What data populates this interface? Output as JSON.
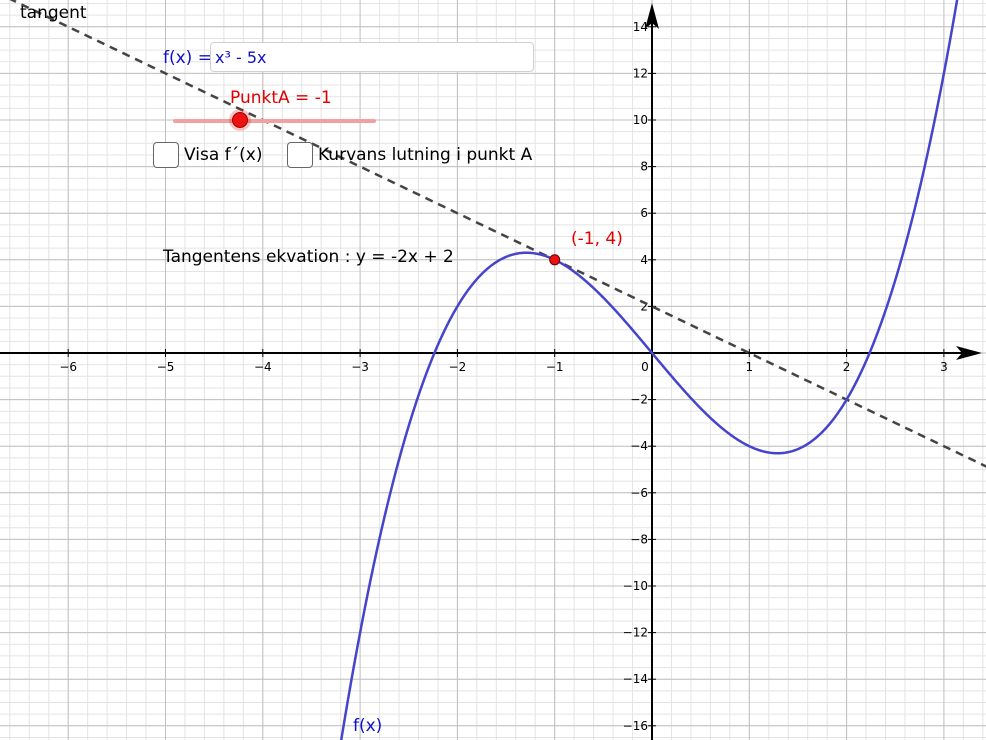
{
  "graph": {
    "x_ticks": [
      "−6",
      "−5",
      "−4",
      "−3",
      "−2",
      "−1",
      "0",
      "1",
      "2",
      "3"
    ],
    "y_ticks": [
      "14",
      "12",
      "10",
      "8",
      "6",
      "4",
      "2",
      "−2",
      "−4",
      "−6",
      "−8",
      "−10",
      "−12",
      "−14",
      "−16"
    ],
    "x_tick_values": [
      -6,
      -5,
      -4,
      -3,
      -2,
      -1,
      0,
      1,
      2,
      3
    ],
    "y_tick_values": [
      14,
      12,
      10,
      8,
      6,
      4,
      2,
      -2,
      -4,
      -6,
      -8,
      -10,
      -12,
      -14,
      -16
    ],
    "curve_color": "#4444cc",
    "tangent_color": "#444444",
    "point_color": "#ee1111",
    "point": {
      "x": -1,
      "y": 4
    }
  },
  "inputbar": {
    "label": "f(x) =",
    "value": "x³ - 5x"
  },
  "slider": {
    "label": "PunktA = -1",
    "value": -1
  },
  "checkboxes": {
    "derivative_label": "Visa f´(x)",
    "slope_label": "Kurvans lutning i punkt A"
  },
  "labels": {
    "tangent_equation": "Tangentens ekvation :  y = -2x + 2",
    "tangent_name": "tangent",
    "point_label": "(-1, 4)",
    "curve_name": "f(x)"
  },
  "colors": {
    "function_text": "#1010cc",
    "slider_accent": "#e00000"
  }
}
